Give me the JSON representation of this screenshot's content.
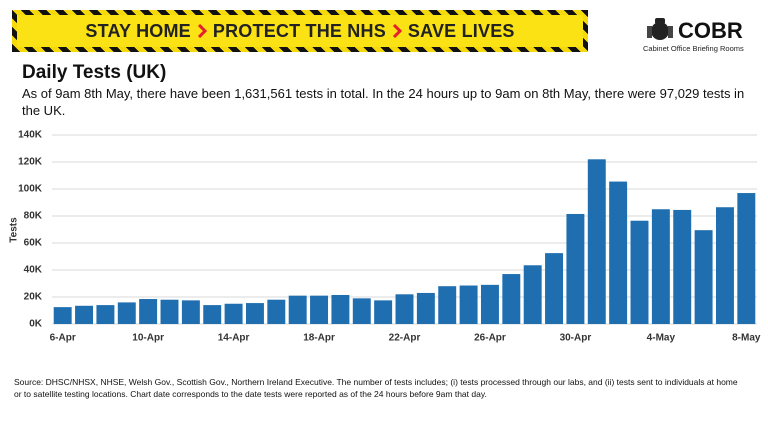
{
  "banner": {
    "items": [
      "STAY HOME",
      "PROTECT THE NHS",
      "SAVE LIVES"
    ]
  },
  "logo": {
    "name": "COBR",
    "subtitle": "Cabinet Office Briefing Rooms"
  },
  "chart_data": {
    "type": "bar",
    "title": "Daily Tests (UK)",
    "subtitle": "As of 9am 8th May, there have been 1,631,561 tests in total. In the 24 hours up to 9am on 8th May, there were 97,029 tests in the UK.",
    "y_label": "Tests",
    "categories": [
      "6-Apr",
      null,
      null,
      null,
      "10-Apr",
      null,
      null,
      null,
      "14-Apr",
      null,
      null,
      null,
      "18-Apr",
      null,
      null,
      null,
      "22-Apr",
      null,
      null,
      null,
      "26-Apr",
      null,
      null,
      null,
      "30-Apr",
      null,
      null,
      null,
      "4-May",
      null,
      null,
      null,
      "8-May"
    ],
    "values": [
      12500,
      13500,
      14000,
      16000,
      18500,
      18000,
      17500,
      14000,
      15000,
      15500,
      18000,
      21000,
      21000,
      21500,
      19000,
      17500,
      22000,
      23000,
      28000,
      28500,
      29000,
      37000,
      43500,
      52500,
      81500,
      122000,
      105500,
      76500,
      85000,
      84500,
      69500,
      86500,
      97000
    ],
    "color": "#1f6eb0",
    "ylim": [
      0,
      140000
    ],
    "yticks": [
      {
        "value": 0,
        "label": "0K"
      },
      {
        "value": 20000,
        "label": "20K"
      },
      {
        "value": 40000,
        "label": "40K"
      },
      {
        "value": 60000,
        "label": "60K"
      },
      {
        "value": 80000,
        "label": "80K"
      },
      {
        "value": 100000,
        "label": "100K"
      },
      {
        "value": 120000,
        "label": "120K"
      },
      {
        "value": 140000,
        "label": "140K"
      }
    ],
    "grid": true,
    "source": "Source: DHSC/NHSX, NHSE, Welsh Gov., Scottish Gov., Northern Ireland Executive. The number of tests includes; (i) tests processed through our labs, and (ii) tests sent to individuals at home or to satellite testing locations. Chart date corresponds to the date tests were reported as of the 24 hours before 9am that day."
  }
}
